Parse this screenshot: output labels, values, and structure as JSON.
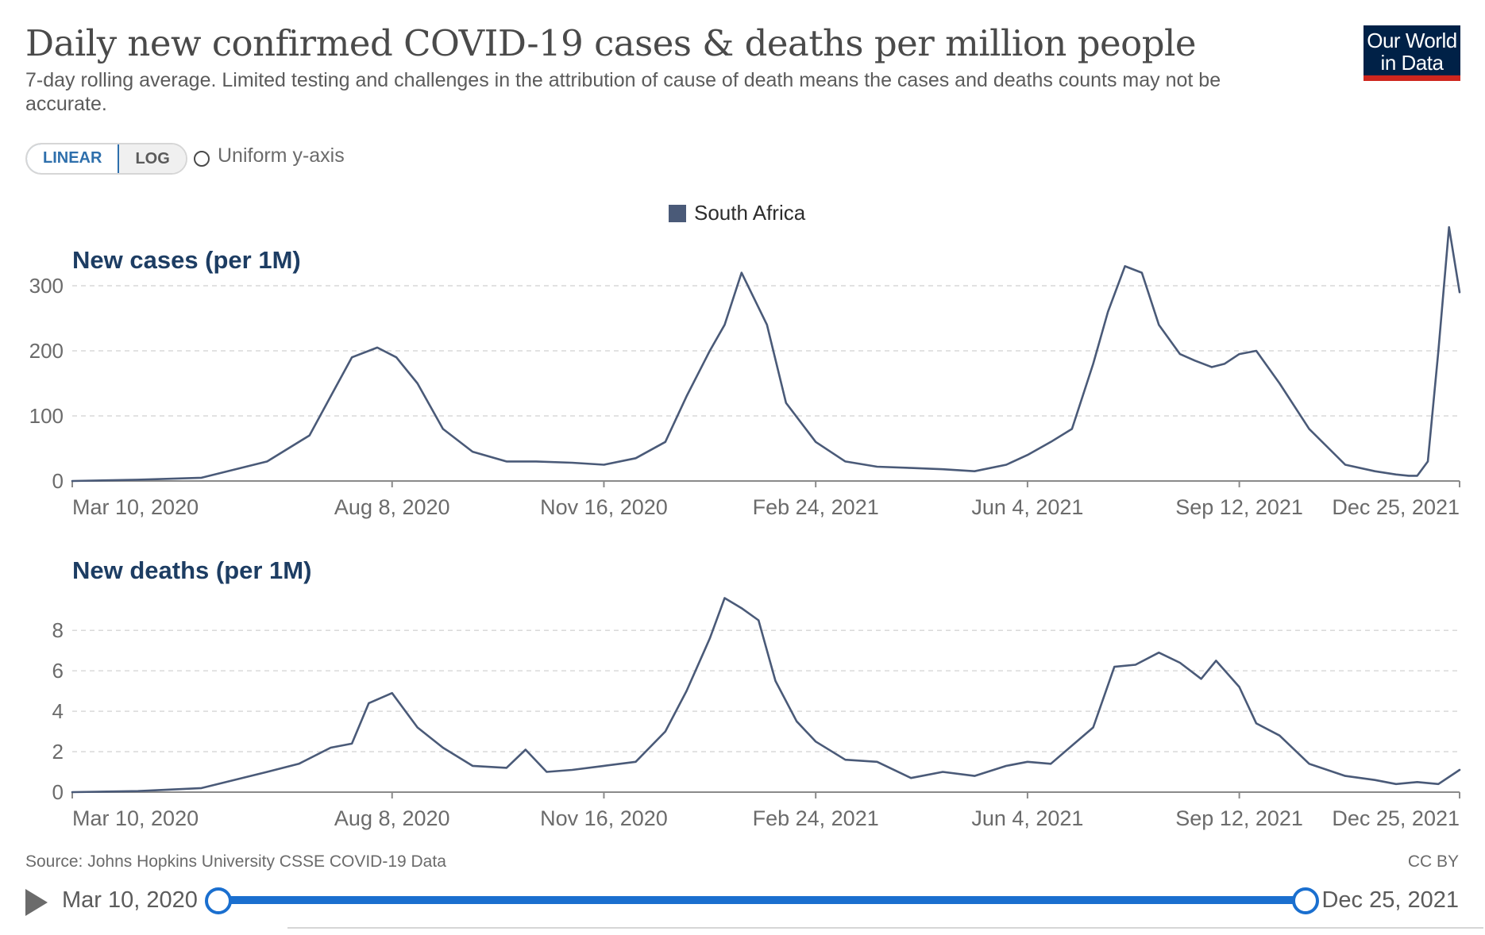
{
  "header": {
    "title": "Daily new confirmed COVID-19 cases & deaths per million people",
    "subtitle": "7-day rolling average. Limited testing and challenges in the attribution of cause of death means the cases and deaths counts may not be accurate.",
    "logo_line1": "Our World",
    "logo_line2": "in Data"
  },
  "controls": {
    "linear_label": "LINEAR",
    "log_label": "LOG",
    "uniform_label": "Uniform y-axis",
    "active_scale": "LINEAR"
  },
  "legend": {
    "label": "South Africa",
    "color": "#4a5a78"
  },
  "footer": {
    "source": "Source: Johns Hopkins University CSSE COVID-19 Data",
    "license": "CC BY"
  },
  "timeline": {
    "start_label": "Mar 10, 2020",
    "end_label": "Dec 25, 2021",
    "accent": "#1a6fcf"
  },
  "chart_data": [
    {
      "type": "line",
      "title": "New cases (per 1M)",
      "x_ticks": [
        "Mar 10, 2020",
        "Aug 8, 2020",
        "Nov 16, 2020",
        "Feb 24, 2021",
        "Jun 4, 2021",
        "Sep 12, 2021",
        "Dec 25, 2021"
      ],
      "x_tick_dates": [
        "2020-03-10",
        "2020-08-08",
        "2020-11-16",
        "2021-02-24",
        "2021-06-04",
        "2021-09-12",
        "2021-12-25"
      ],
      "y_ticks": [
        0,
        100,
        200,
        300
      ],
      "ylim": [
        0,
        300
      ],
      "grid": true,
      "series": [
        {
          "name": "South Africa",
          "color": "#4a5a78",
          "x": [
            "2020-03-10",
            "2020-04-10",
            "2020-05-10",
            "2020-06-10",
            "2020-06-30",
            "2020-07-10",
            "2020-07-20",
            "2020-08-01",
            "2020-08-10",
            "2020-08-20",
            "2020-09-01",
            "2020-09-15",
            "2020-10-01",
            "2020-10-15",
            "2020-11-01",
            "2020-11-16",
            "2020-12-01",
            "2020-12-15",
            "2020-12-25",
            "2021-01-05",
            "2021-01-12",
            "2021-01-20",
            "2021-02-01",
            "2021-02-10",
            "2021-02-24",
            "2021-03-10",
            "2021-03-25",
            "2021-04-10",
            "2021-04-25",
            "2021-05-10",
            "2021-05-25",
            "2021-06-04",
            "2021-06-15",
            "2021-06-25",
            "2021-07-05",
            "2021-07-12",
            "2021-07-20",
            "2021-07-28",
            "2021-08-05",
            "2021-08-15",
            "2021-08-22",
            "2021-08-30",
            "2021-09-05",
            "2021-09-12",
            "2021-09-20",
            "2021-10-01",
            "2021-10-15",
            "2021-11-01",
            "2021-11-15",
            "2021-11-25",
            "2021-12-01",
            "2021-12-05",
            "2021-12-10",
            "2021-12-15",
            "2021-12-20",
            "2021-12-25"
          ],
          "y": [
            0,
            2,
            5,
            30,
            70,
            130,
            190,
            205,
            190,
            150,
            80,
            45,
            30,
            30,
            28,
            25,
            35,
            60,
            130,
            200,
            240,
            320,
            240,
            120,
            60,
            30,
            22,
            20,
            18,
            15,
            25,
            40,
            60,
            80,
            180,
            260,
            330,
            320,
            240,
            195,
            185,
            175,
            180,
            195,
            200,
            150,
            80,
            25,
            15,
            10,
            8,
            8,
            30,
            200,
            390,
            290
          ]
        }
      ]
    },
    {
      "type": "line",
      "title": "New deaths (per 1M)",
      "x_ticks": [
        "Mar 10, 2020",
        "Aug 8, 2020",
        "Nov 16, 2020",
        "Feb 24, 2021",
        "Jun 4, 2021",
        "Sep 12, 2021",
        "Dec 25, 2021"
      ],
      "x_tick_dates": [
        "2020-03-10",
        "2020-08-08",
        "2020-11-16",
        "2021-02-24",
        "2021-06-04",
        "2021-09-12",
        "2021-12-25"
      ],
      "y_ticks": [
        0,
        2,
        4,
        6,
        8
      ],
      "ylim": [
        0,
        9.5
      ],
      "grid": true,
      "series": [
        {
          "name": "South Africa",
          "color": "#4a5a78",
          "x": [
            "2020-03-10",
            "2020-04-10",
            "2020-05-10",
            "2020-06-10",
            "2020-06-25",
            "2020-07-10",
            "2020-07-20",
            "2020-07-28",
            "2020-08-08",
            "2020-08-20",
            "2020-09-01",
            "2020-09-15",
            "2020-10-01",
            "2020-10-10",
            "2020-10-20",
            "2020-11-01",
            "2020-11-16",
            "2020-12-01",
            "2020-12-15",
            "2020-12-25",
            "2021-01-05",
            "2021-01-12",
            "2021-01-20",
            "2021-01-28",
            "2021-02-05",
            "2021-02-15",
            "2021-02-24",
            "2021-03-10",
            "2021-03-25",
            "2021-04-10",
            "2021-04-25",
            "2021-05-10",
            "2021-05-25",
            "2021-06-04",
            "2021-06-15",
            "2021-06-25",
            "2021-07-05",
            "2021-07-15",
            "2021-07-25",
            "2021-08-05",
            "2021-08-15",
            "2021-08-25",
            "2021-09-01",
            "2021-09-12",
            "2021-09-20",
            "2021-10-01",
            "2021-10-15",
            "2021-11-01",
            "2021-11-15",
            "2021-11-25",
            "2021-12-05",
            "2021-12-15",
            "2021-12-25"
          ],
          "y": [
            0,
            0.05,
            0.2,
            1.0,
            1.4,
            2.2,
            2.4,
            4.4,
            4.9,
            3.2,
            2.2,
            1.3,
            1.2,
            2.1,
            1.0,
            1.1,
            1.3,
            1.5,
            3.0,
            5.0,
            7.6,
            9.6,
            9.1,
            8.5,
            5.5,
            3.5,
            2.5,
            1.6,
            1.5,
            0.7,
            1.0,
            0.8,
            1.3,
            1.5,
            1.4,
            2.3,
            3.2,
            6.2,
            6.3,
            6.9,
            6.4,
            5.6,
            6.5,
            5.2,
            3.4,
            2.8,
            1.4,
            0.8,
            0.6,
            0.4,
            0.5,
            0.4,
            1.1
          ]
        }
      ]
    }
  ]
}
